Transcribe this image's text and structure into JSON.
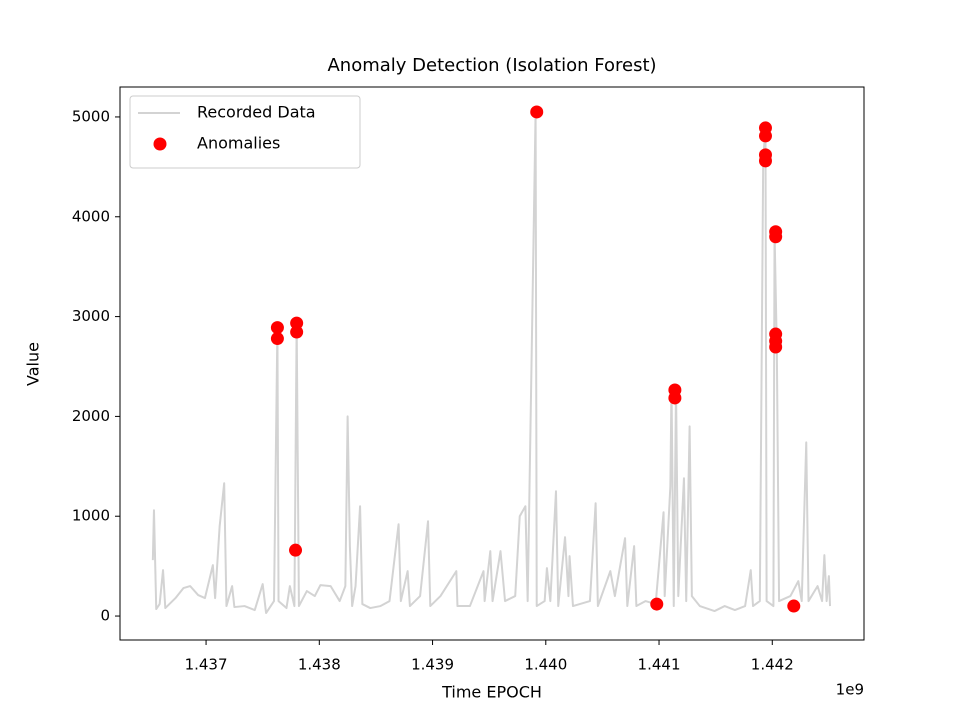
{
  "chart_data": {
    "type": "line",
    "title": "Anomaly Detection (Isolation Forest)",
    "x_label": "Time EPOCH",
    "y_label": "Value",
    "x_offset_text": "1e9",
    "xlim": [
      1.43624,
      1.44281
    ],
    "ylim": [
      -240,
      5300
    ],
    "xticks": [
      1.437,
      1.438,
      1.439,
      {
        "value": 1.44,
        "label": "1.440"
      },
      1.441,
      1.442
    ],
    "yticks": [
      0,
      1000,
      2000,
      3000,
      4000,
      5000
    ],
    "grid": false,
    "legend": "upper left",
    "series": [
      {
        "name": "Recorded Data",
        "type": "line",
        "color": "#d3d3d3",
        "x": [
          1.43653,
          1.43654,
          1.43656,
          1.43659,
          1.43662,
          1.43664,
          1.43673,
          1.4368,
          1.43686,
          1.43693,
          1.43699,
          1.43706,
          1.43708,
          1.43712,
          1.43716,
          1.43718,
          1.43723,
          1.43725,
          1.43734,
          1.43743,
          1.4375,
          1.43753,
          1.4376,
          1.43763,
          1.43764,
          1.43771,
          1.43774,
          1.43778,
          1.4378,
          1.43782,
          1.43789,
          1.43796,
          1.43801,
          1.4381,
          1.43818,
          1.43823,
          1.43825,
          1.43827,
          1.43829,
          1.43832,
          1.43836,
          1.43838,
          1.43845,
          1.43854,
          1.43862,
          1.4387,
          1.43872,
          1.43878,
          1.4388,
          1.43889,
          1.43896,
          1.43898,
          1.43907,
          1.43921,
          1.43922,
          1.43933,
          1.43945,
          1.43946,
          1.43951,
          1.43953,
          1.4396,
          1.43964,
          1.43973,
          1.43977,
          1.43982,
          1.43984,
          1.43991,
          1.43992,
          1.43999,
          1.44001,
          1.44004,
          1.44009,
          1.44011,
          1.44017,
          1.4402,
          1.44021,
          1.44024,
          1.44039,
          1.44044,
          1.44046,
          1.44057,
          1.44061,
          1.4407,
          1.44072,
          1.44078,
          1.4408,
          1.44088,
          1.44097,
          1.44104,
          1.44105,
          1.4411,
          1.44111,
          1.44113,
          1.44115,
          1.44117,
          1.44122,
          1.44124,
          1.44127,
          1.44129,
          1.44136,
          1.44149,
          1.44158,
          1.44167,
          1.44176,
          1.44181,
          1.44183,
          1.44189,
          1.44192,
          1.44194,
          1.44195,
          1.44201,
          1.44202,
          1.44204,
          1.44206,
          1.44216,
          1.44223,
          1.44226,
          1.4423,
          1.44232,
          1.4424,
          1.44244,
          1.44246,
          1.44248,
          1.4425,
          1.44251
        ],
        "values": [
          560,
          1060,
          70,
          120,
          460,
          80,
          180,
          280,
          300,
          210,
          180,
          510,
          180,
          900,
          1330,
          100,
          300,
          90,
          100,
          60,
          320,
          30,
          150,
          2890,
          150,
          80,
          300,
          100,
          2930,
          100,
          250,
          200,
          310,
          300,
          150,
          300,
          2000,
          700,
          100,
          300,
          1100,
          120,
          80,
          100,
          150,
          920,
          150,
          450,
          100,
          200,
          950,
          100,
          200,
          450,
          100,
          100,
          450,
          150,
          650,
          150,
          650,
          150,
          200,
          1000,
          1100,
          150,
          5050,
          100,
          150,
          480,
          150,
          1250,
          100,
          790,
          200,
          600,
          100,
          150,
          1130,
          100,
          450,
          200,
          780,
          100,
          700,
          100,
          150,
          120,
          1040,
          200,
          1300,
          2300,
          100,
          2270,
          200,
          1380,
          150,
          1900,
          200,
          100,
          50,
          100,
          60,
          100,
          460,
          100,
          150,
          4570,
          4900,
          150,
          100,
          3850,
          2700,
          150,
          200,
          350,
          150,
          1740,
          150,
          300,
          150,
          610,
          150,
          400,
          100
        ]
      },
      {
        "name": "Anomalies",
        "type": "scatter",
        "color": "#ff0000",
        "x": [
          1.43763,
          1.43763,
          1.4378,
          1.4378,
          1.43779,
          1.43992,
          1.44098,
          1.44114,
          1.44114,
          1.44194,
          1.44194,
          1.44194,
          1.44194,
          1.44203,
          1.44203,
          1.44203,
          1.44203,
          1.44203,
          1.44219
        ],
        "values": [
          2890,
          2780,
          2935,
          2845,
          660,
          5050,
          120,
          2265,
          2185,
          4890,
          4810,
          4620,
          4560,
          3850,
          3800,
          2825,
          2755,
          2695,
          100
        ]
      }
    ]
  }
}
